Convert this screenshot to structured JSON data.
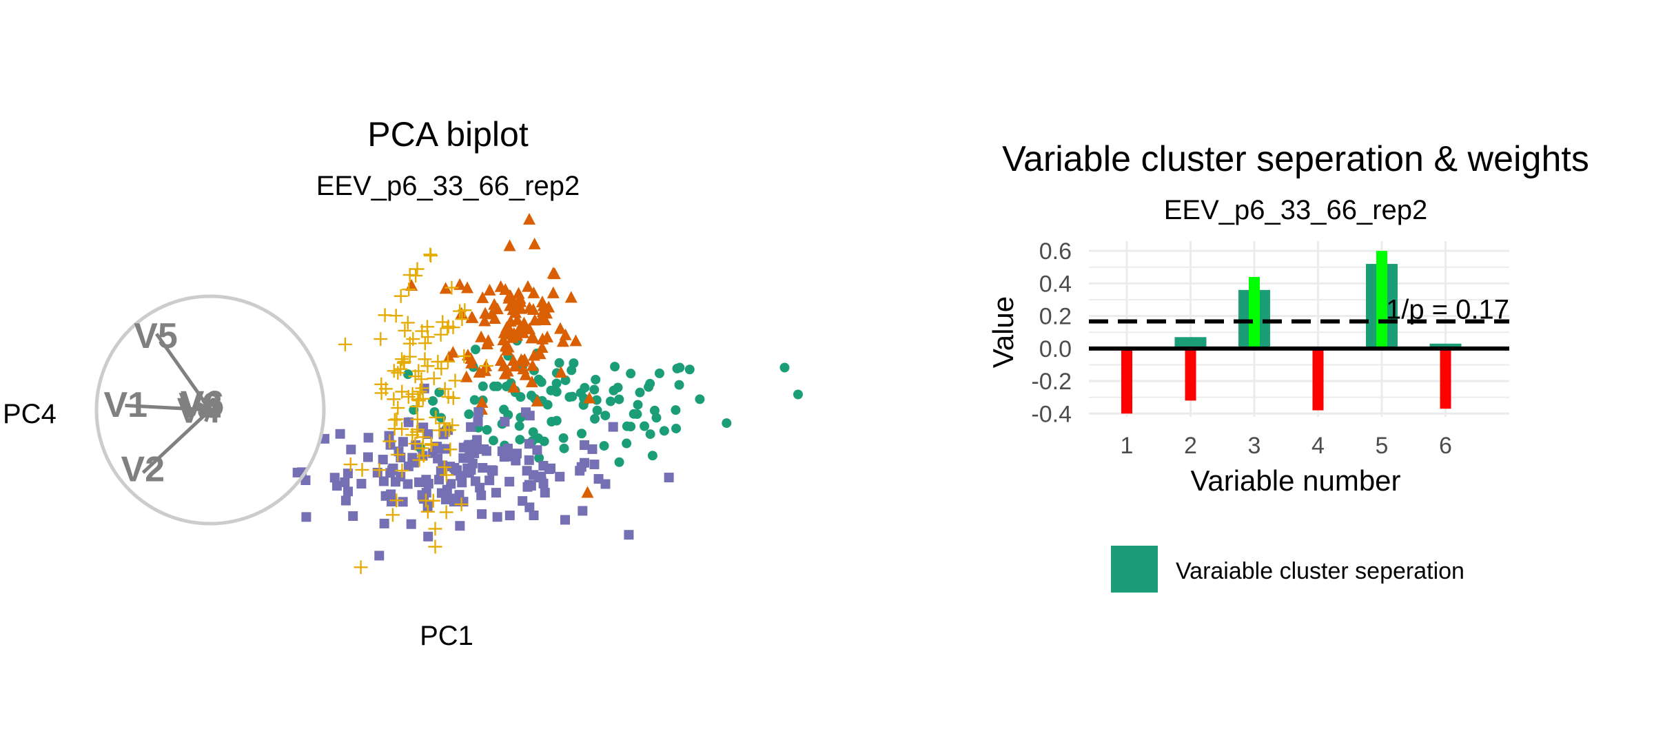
{
  "left_panel": {
    "title": "PCA biplot",
    "subtitle": "EEV_p6_33_66_rep2",
    "x_axis_label": "PC1",
    "y_axis_label": "PC4"
  },
  "right_panel": {
    "title": "Variable cluster seperation & weights",
    "subtitle": "EEV_p6_33_66_rep2",
    "x_axis_label": "Variable number",
    "y_axis_label": "Value",
    "reference_label": "1/p = 0.17",
    "legend_label": "Varaiable cluster seperation"
  },
  "colors": {
    "cluster_green": "#1b9e77",
    "cluster_orange": "#d95f02",
    "cluster_purple": "#7570b3",
    "cluster_yellow": "#e6ab02",
    "axis_arrow_gray": "#808080",
    "circle_gray": "#cccccc",
    "weight_negative": "#ff0000",
    "weight_positive": "#00ff00",
    "separation_bar": "#1b9e77",
    "grid": "#ebebeb"
  },
  "chart_data": [
    {
      "type": "scatter",
      "title": "PCA biplot",
      "subtitle": "EEV_p6_33_66_rep2",
      "xlabel": "PC1",
      "ylabel": "PC4",
      "grid": false,
      "axis_ticks": false,
      "series": [
        {
          "marker": "circle",
          "color": "#1b9e77",
          "center": [
            1.0,
            0.1
          ],
          "spread": [
            0.85,
            0.3
          ],
          "count": 110,
          "extra_points": [
            [
              4.6,
              -0.35
            ],
            [
              4.55,
              -0.6
            ],
            [
              3.45,
              0.55
            ],
            [
              3.6,
              0.25
            ]
          ]
        },
        {
          "marker": "triangle",
          "color": "#d95f02",
          "center": [
            0.4,
            1.0
          ],
          "spread": [
            0.32,
            0.4
          ],
          "count": 110,
          "extra_points": [
            [
              0.0,
              3.1
            ],
            [
              1.25,
              -0.85
            ],
            [
              0.6,
              2.2
            ]
          ]
        },
        {
          "marker": "square",
          "color": "#7570b3",
          "center": [
            -0.2,
            -0.6
          ],
          "spread": [
            0.85,
            0.28
          ],
          "count": 150,
          "extra_points": [
            [
              -1.2,
              -0.45
            ],
            [
              0.65,
              -1.1
            ],
            [
              1.0,
              -1.15
            ],
            [
              1.45,
              -0.75
            ]
          ]
        },
        {
          "marker": "plus",
          "color": "#e6ab02",
          "center": [
            -0.6,
            0.1
          ],
          "spread": [
            0.3,
            0.7
          ],
          "count": 100,
          "extra_points": [
            [
              -0.45,
              -1.45
            ],
            [
              -0.45,
              -1.25
            ],
            [
              -0.5,
              1.8
            ],
            [
              -0.65,
              1.65
            ]
          ]
        }
      ],
      "variable_circle": true,
      "loadings": [
        {
          "name": "V1",
          "pc1": 0.95,
          "pc4": 0.05
        },
        {
          "name": "V2",
          "pc1": 0.75,
          "pc4": -0.7
        },
        {
          "name": "V3",
          "pc1": 0.08,
          "pc4": 0.04
        },
        {
          "name": "V4",
          "pc1": 0.1,
          "pc4": -0.02
        },
        {
          "name": "V5",
          "pc1": 0.6,
          "pc4": 0.85
        },
        {
          "name": "V6",
          "pc1": 0.06,
          "pc4": 0.06
        }
      ]
    },
    {
      "type": "bar",
      "title": "Variable cluster seperation & weights",
      "subtitle": "EEV_p6_33_66_rep2",
      "xlabel": "Variable number",
      "ylabel": "Value",
      "categories": [
        "1",
        "2",
        "3",
        "4",
        "5",
        "6"
      ],
      "series": [
        {
          "name": "Varaiable cluster seperation",
          "values": [
            0.0,
            0.07,
            0.36,
            0.0,
            0.52,
            0.03
          ],
          "color": "#1b9e77"
        },
        {
          "values": [
            -0.4,
            -0.32,
            0.44,
            -0.38,
            0.6,
            -0.37
          ],
          "color_rule": "red if negative, green if positive"
        }
      ],
      "ylim": [
        -0.42,
        0.66
      ],
      "y_ticks": [
        "0.6",
        "0.4",
        "0.2",
        "0.0",
        "-0.2",
        "-0.4"
      ],
      "y_tick_values": [
        0.6,
        0.4,
        0.2,
        0.0,
        -0.2,
        -0.4
      ],
      "reference_line": {
        "value": 0.1667,
        "style": "dashed",
        "label": "1/p = 0.17"
      },
      "zero_line": true,
      "grid": true,
      "legend_position": "bottom"
    }
  ]
}
